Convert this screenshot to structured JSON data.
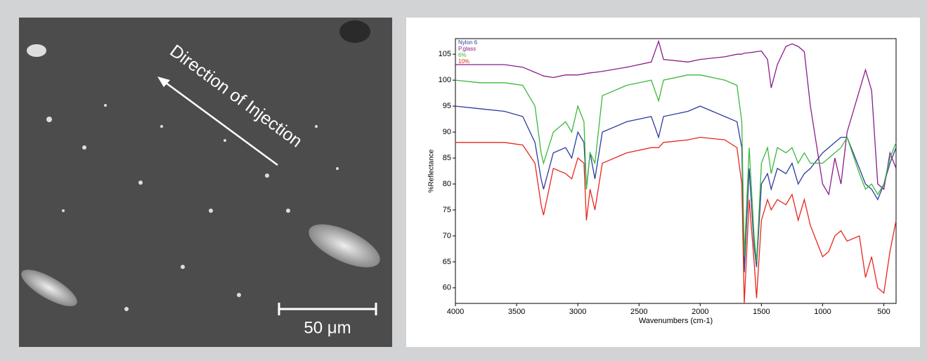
{
  "image": {
    "annotation": "Direction of Injection",
    "scale_bar": "50 μm"
  },
  "chart_data": {
    "type": "line",
    "x_label": "Wavenumbers (cm-1)",
    "y_label": "%Reflectance",
    "xlim": [
      4000,
      400
    ],
    "xticks": [
      4000,
      3500,
      3000,
      2500,
      2000,
      1500,
      1000,
      500
    ],
    "ylim": [
      57,
      108
    ],
    "yticks": [
      60,
      65,
      70,
      75,
      80,
      85,
      90,
      95,
      100,
      105
    ],
    "legend": "top-left",
    "x": [
      4000,
      3800,
      3600,
      3450,
      3350,
      3300,
      3280,
      3200,
      3100,
      3050,
      3000,
      2950,
      2930,
      2900,
      2860,
      2800,
      2600,
      2400,
      2340,
      2300,
      2100,
      2000,
      1800,
      1700,
      1660,
      1640,
      1600,
      1560,
      1540,
      1500,
      1450,
      1420,
      1370,
      1300,
      1250,
      1200,
      1150,
      1100,
      1000,
      950,
      900,
      850,
      800,
      700,
      650,
      600,
      550,
      500,
      450,
      400
    ],
    "series": [
      {
        "name": "Nylon 6",
        "color": "#2b3c9e",
        "values": [
          95,
          94.5,
          94,
          93,
          88,
          81,
          79,
          86,
          87,
          85,
          90,
          88,
          79,
          86,
          81,
          90,
          92,
          93,
          89,
          93,
          94,
          95,
          93,
          92,
          87,
          63,
          83,
          68,
          64,
          80,
          82,
          79,
          83,
          82,
          84,
          80,
          82,
          83,
          86,
          87,
          88,
          89,
          89,
          83,
          80,
          79,
          77,
          80,
          84,
          87
        ]
      },
      {
        "name": "P.glass",
        "color": "#8a1c8c",
        "values": [
          103,
          103,
          103,
          102.5,
          101.5,
          101,
          100.8,
          100.5,
          101,
          101,
          101,
          101.2,
          101.3,
          101.4,
          101.5,
          101.7,
          102.5,
          103.5,
          107.5,
          104,
          103.5,
          104,
          104.5,
          105,
          105,
          105.2,
          105.3,
          105.4,
          105.5,
          105.6,
          104,
          98.5,
          103,
          106.5,
          107,
          106.5,
          105.5,
          95,
          80,
          78,
          85,
          80,
          90,
          98,
          102,
          98,
          80,
          79,
          86,
          83
        ]
      },
      {
        "name": "6%",
        "color": "#3cb83c",
        "values": [
          100,
          99.5,
          99.5,
          99,
          95,
          86,
          84,
          90,
          92,
          90,
          95,
          92,
          79,
          86,
          84,
          97,
          99,
          100,
          96,
          100,
          101,
          101,
          100,
          99,
          92,
          66,
          87,
          70,
          65,
          84,
          87,
          82,
          87,
          86,
          87,
          84,
          86,
          84,
          84,
          85,
          86,
          87,
          89,
          82,
          79,
          80,
          78,
          80,
          85,
          88
        ]
      },
      {
        "name": "10%",
        "color": "#e8261c",
        "values": [
          88,
          88,
          88,
          87.5,
          84,
          76,
          74,
          83,
          82,
          81,
          85,
          84,
          73,
          79,
          75,
          84,
          86,
          87,
          87,
          88,
          88.5,
          89,
          88.5,
          87,
          80,
          57,
          77,
          65,
          58,
          73,
          77,
          75,
          77,
          76,
          78,
          73,
          77,
          72,
          66,
          67,
          70,
          71,
          69,
          70,
          62,
          66,
          60,
          59,
          67,
          73
        ]
      }
    ]
  }
}
